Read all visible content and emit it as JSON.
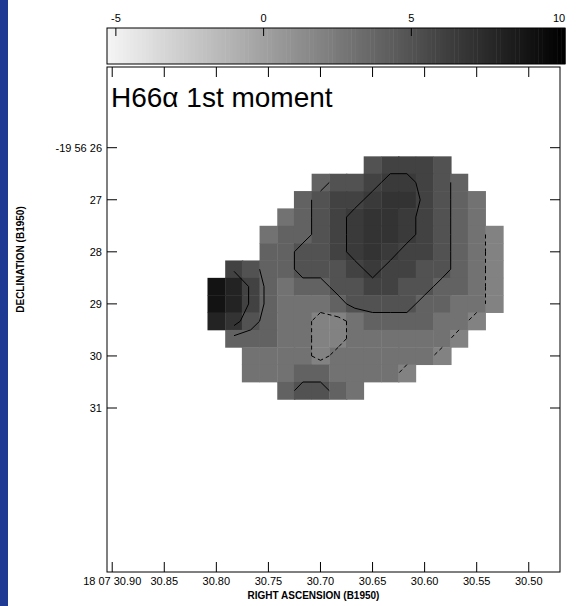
{
  "chart_data": {
    "type": "heatmap",
    "title": "H66α 1st moment",
    "x_label": "RIGHT ASCENSION (B1950)",
    "y_label": "DECLINATION (B1950)",
    "xlim": [
      30.905,
      30.47
    ],
    "ylim": [
      34.15,
      24.45
    ],
    "xticks": [
      {
        "value": 30.9,
        "label": "18 07 30.90"
      },
      30.85,
      {
        "value": 30.8,
        "label": "30.80"
      },
      30.75,
      {
        "value": 30.7,
        "label": "30.70"
      },
      30.65,
      {
        "value": 30.6,
        "label": "30.60"
      },
      30.55,
      {
        "value": 30.5,
        "label": "30.50"
      }
    ],
    "yticks": [
      {
        "value": 26,
        "label": "-19 56 26"
      },
      27,
      28,
      29,
      30,
      31
    ],
    "x": [
      30.8,
      30.783,
      30.767,
      30.75,
      30.733,
      30.717,
      30.7,
      30.683,
      30.667,
      30.65,
      30.633,
      30.617,
      30.6,
      30.583,
      30.567,
      30.55,
      30.533
    ],
    "y": [
      26.333,
      26.667,
      27.0,
      27.333,
      27.667,
      28.0,
      28.333,
      28.667,
      29.0,
      29.333,
      29.667,
      30.0,
      30.333,
      30.667
    ],
    "cells": [
      [
        null,
        null,
        null,
        null,
        null,
        null,
        null,
        null,
        null,
        5,
        6,
        6,
        6,
        5,
        null,
        null,
        null
      ],
      [
        null,
        null,
        null,
        null,
        null,
        null,
        4,
        5,
        5,
        6,
        6.5,
        6.5,
        6,
        5,
        4,
        null,
        null
      ],
      [
        null,
        null,
        null,
        null,
        null,
        4,
        5,
        6,
        6,
        6.5,
        7,
        7,
        6,
        5,
        4,
        3,
        null
      ],
      [
        null,
        null,
        null,
        null,
        3,
        4,
        5,
        6,
        6.5,
        7,
        7,
        6.5,
        6,
        5,
        4,
        3,
        null
      ],
      [
        null,
        null,
        null,
        3,
        4,
        4,
        5,
        6,
        6.5,
        7,
        7,
        6.5,
        6,
        5,
        4,
        3,
        2
      ],
      [
        null,
        null,
        null,
        4,
        4,
        5,
        5,
        6,
        6.5,
        7,
        6.5,
        6,
        6,
        5,
        4,
        3,
        2
      ],
      [
        null,
        6,
        5,
        4,
        4,
        5,
        5,
        5,
        6,
        6.5,
        6,
        6,
        5,
        5,
        4,
        3,
        2
      ],
      [
        9,
        8,
        6,
        4,
        3,
        4,
        4,
        5,
        5,
        6,
        6,
        5,
        5,
        4,
        4,
        3,
        2
      ],
      [
        9,
        8,
        6,
        4,
        3,
        3,
        3,
        4,
        5,
        5,
        5,
        5,
        4,
        4,
        3,
        3,
        2
      ],
      [
        8,
        7,
        5,
        4,
        3,
        3,
        2,
        2,
        3,
        4,
        4,
        4,
        4,
        3,
        3,
        2,
        null
      ],
      [
        null,
        4,
        4,
        4,
        3,
        3,
        2,
        2,
        3,
        3,
        3,
        3,
        3,
        3,
        2,
        null,
        null
      ],
      [
        null,
        null,
        3,
        3,
        3,
        3,
        2,
        3,
        3,
        3,
        3,
        3,
        3,
        2,
        null,
        null,
        null
      ],
      [
        null,
        null,
        3,
        3,
        3,
        4,
        4,
        3,
        3,
        3,
        3,
        2,
        null,
        null,
        null,
        null,
        null
      ],
      [
        null,
        null,
        null,
        null,
        4,
        5,
        5,
        4,
        3,
        null,
        null,
        null,
        null,
        null,
        null,
        null,
        null
      ]
    ],
    "colorbar_range": [
      -5.3,
      10.2
    ],
    "colorbar_ticks": [
      -5,
      0,
      5,
      10
    ],
    "contours": [
      {
        "level": 2.5,
        "line_style": "dashed"
      },
      {
        "level": 4.5,
        "line_style": "solid"
      },
      {
        "level": 6.25,
        "line_style": "solid"
      }
    ]
  }
}
